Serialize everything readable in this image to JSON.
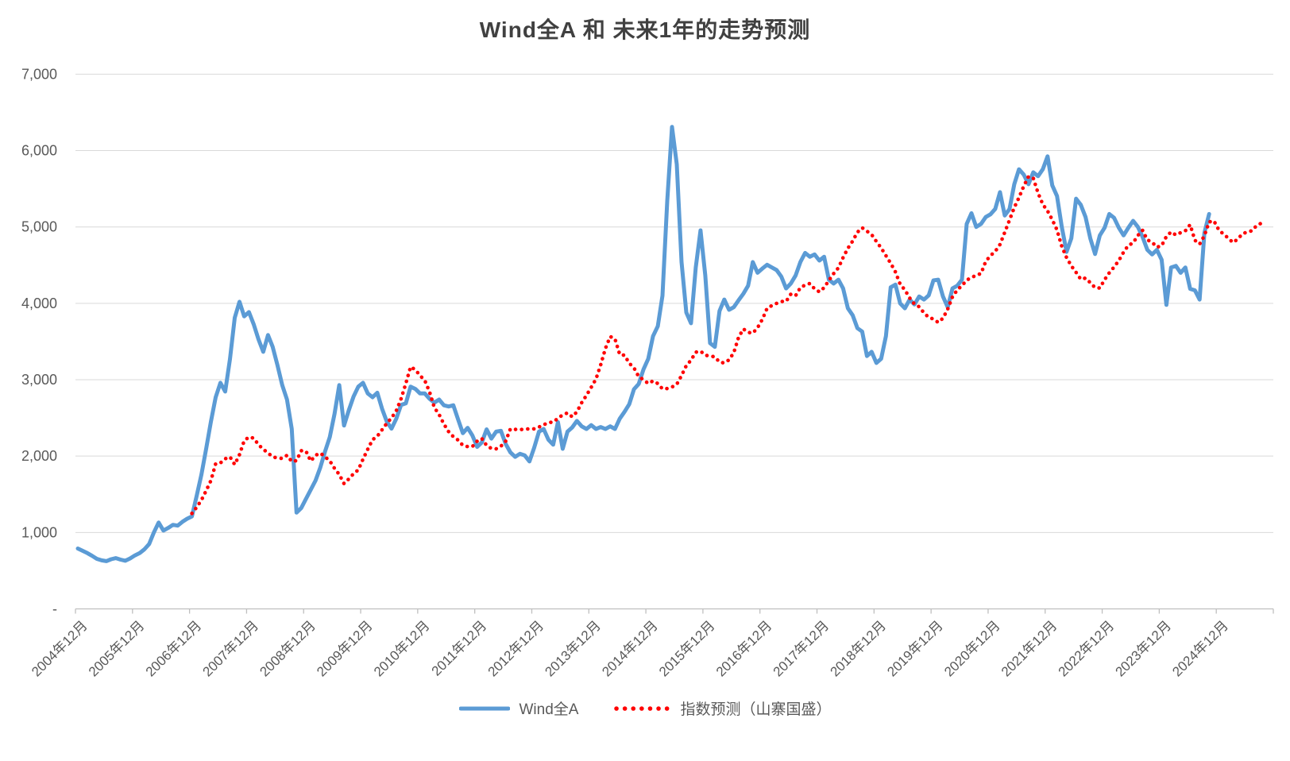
{
  "title": "Wind全A 和 未来1年的走势预测",
  "legend": {
    "items": [
      {
        "label": "Wind全A",
        "color": "#5B9BD5",
        "style": "solid"
      },
      {
        "label": "指数预测（山寨国盛）",
        "color": "#FF0000",
        "style": "dotted"
      }
    ]
  },
  "colors": {
    "series_actual": "#5B9BD5",
    "series_forecast": "#FF0000",
    "gridline": "#D9D9D9",
    "axis_line": "#BFBFBF",
    "axis_text": "#595959",
    "title_text": "#404040"
  },
  "chart_data": {
    "type": "line",
    "title": "Wind全A 和 未来1年的走势预测",
    "x_unit": "month",
    "x_start_label": "2004年12月",
    "grid": true,
    "legend_position": "bottom",
    "ylim": [
      0,
      7000
    ],
    "y_step": 1000,
    "y_tick_labels": [
      "7,000",
      "6,000",
      "5,000",
      "4,000",
      "3,000",
      "2,000",
      "1,000",
      "-"
    ],
    "x_tick_labels": [
      "2004年12月",
      "2005年12月",
      "2006年12月",
      "2007年12月",
      "2008年12月",
      "2009年12月",
      "2010年12月",
      "2011年12月",
      "2012年12月",
      "2013年12月",
      "2014年12月",
      "2015年12月",
      "2016年12月",
      "2017年12月",
      "2018年12月",
      "2019年12月",
      "2020年12月",
      "2021年12月",
      "2022年12月",
      "2023年12月",
      "2024年12月"
    ],
    "months_total": 252,
    "series": [
      {
        "name": "Wind全A",
        "color": "#5B9BD5",
        "style": "solid",
        "start_month_index": 0,
        "values": [
          790,
          760,
          730,
          695,
          655,
          635,
          625,
          650,
          665,
          645,
          630,
          660,
          700,
          730,
          780,
          850,
          1000,
          1130,
          1025,
          1060,
          1100,
          1090,
          1140,
          1180,
          1210,
          1480,
          1760,
          2100,
          2450,
          2770,
          2960,
          2845,
          3270,
          3810,
          4020,
          3830,
          3885,
          3725,
          3530,
          3365,
          3585,
          3430,
          3190,
          2930,
          2740,
          2355,
          1260,
          1320,
          1440,
          1560,
          1680,
          1850,
          2060,
          2250,
          2550,
          2930,
          2400,
          2600,
          2780,
          2910,
          2960,
          2820,
          2770,
          2830,
          2620,
          2450,
          2360,
          2490,
          2670,
          2690,
          2910,
          2880,
          2820,
          2820,
          2750,
          2700,
          2740,
          2665,
          2650,
          2665,
          2480,
          2300,
          2370,
          2270,
          2120,
          2180,
          2350,
          2230,
          2320,
          2330,
          2160,
          2050,
          1990,
          2030,
          2010,
          1930,
          2110,
          2320,
          2355,
          2215,
          2150,
          2445,
          2095,
          2320,
          2375,
          2460,
          2390,
          2355,
          2405,
          2355,
          2380,
          2355,
          2390,
          2355,
          2490,
          2580,
          2680,
          2875,
          2945,
          3135,
          3275,
          3570,
          3700,
          4100,
          5340,
          6310,
          5820,
          4540,
          3880,
          3740,
          4470,
          4955,
          4365,
          3480,
          3430,
          3900,
          4050,
          3915,
          3950,
          4040,
          4125,
          4230,
          4540,
          4400,
          4455,
          4505,
          4470,
          4435,
          4350,
          4195,
          4260,
          4365,
          4540,
          4660,
          4610,
          4640,
          4560,
          4610,
          4310,
          4260,
          4310,
          4195,
          3935,
          3845,
          3675,
          3630,
          3310,
          3365,
          3220,
          3275,
          3570,
          4210,
          4245,
          4000,
          3935,
          4050,
          3985,
          4090,
          4050,
          4105,
          4300,
          4310,
          4090,
          3950,
          4195,
          4230,
          4310,
          5040,
          5180,
          5000,
          5040,
          5130,
          5165,
          5235,
          5455,
          5150,
          5235,
          5560,
          5755,
          5685,
          5560,
          5715,
          5665,
          5755,
          5925,
          5545,
          5405,
          5000,
          4675,
          4850,
          5370,
          5290,
          5130,
          4850,
          4645,
          4890,
          4990,
          5170,
          5120,
          4990,
          4890,
          4990,
          5080,
          5000,
          4870,
          4700,
          4640,
          4700,
          4570,
          3980,
          4470,
          4490,
          4400,
          4470,
          4190,
          4170,
          4050,
          4920,
          5170
        ]
      },
      {
        "name": "指数预测（山寨国盛）",
        "color": "#FF0000",
        "style": "dotted",
        "start_month_index": 24,
        "values": [
          1250,
          1330,
          1425,
          1550,
          1680,
          1900,
          1910,
          1965,
          1990,
          1890,
          2020,
          2200,
          2250,
          2235,
          2150,
          2090,
          2040,
          1990,
          1975,
          1970,
          2010,
          1930,
          1940,
          2070,
          2065,
          1935,
          2010,
          2040,
          1990,
          1937,
          1840,
          1760,
          1640,
          1700,
          1770,
          1820,
          1960,
          2090,
          2215,
          2260,
          2345,
          2430,
          2500,
          2595,
          2750,
          2950,
          3170,
          3130,
          3055,
          2990,
          2840,
          2635,
          2545,
          2420,
          2320,
          2255,
          2210,
          2140,
          2125,
          2125,
          2195,
          2230,
          2140,
          2100,
          2095,
          2130,
          2195,
          2355,
          2350,
          2345,
          2355,
          2355,
          2357,
          2380,
          2410,
          2440,
          2445,
          2495,
          2540,
          2565,
          2515,
          2580,
          2700,
          2795,
          2900,
          3010,
          3195,
          3410,
          3565,
          3535,
          3330,
          3320,
          3215,
          3155,
          3040,
          3000,
          2950,
          2985,
          2950,
          2880,
          2885,
          2905,
          2940,
          3055,
          3185,
          3255,
          3360,
          3375,
          3320,
          3310,
          3300,
          3230,
          3220,
          3260,
          3355,
          3555,
          3665,
          3620,
          3610,
          3680,
          3790,
          3935,
          3970,
          4000,
          4025,
          4025,
          4120,
          4100,
          4205,
          4240,
          4260,
          4190,
          4150,
          4205,
          4300,
          4390,
          4465,
          4600,
          4720,
          4815,
          4930,
          4990,
          4945,
          4900,
          4810,
          4725,
          4625,
          4525,
          4410,
          4250,
          4175,
          4070,
          3990,
          3955,
          3875,
          3815,
          3795,
          3750,
          3805,
          3925,
          4085,
          4175,
          4230,
          4305,
          4335,
          4370,
          4390,
          4550,
          4625,
          4680,
          4770,
          4930,
          5090,
          5255,
          5385,
          5535,
          5660,
          5640,
          5445,
          5295,
          5210,
          5095,
          4960,
          4745,
          4600,
          4490,
          4405,
          4315,
          4330,
          4270,
          4205,
          4200,
          4310,
          4400,
          4475,
          4560,
          4670,
          4760,
          4790,
          4890,
          4955,
          4830,
          4800,
          4735,
          4755,
          4875,
          4935,
          4895,
          4925,
          4950,
          5030,
          4825,
          4775,
          4885,
          5065,
          5080,
          4965,
          4905,
          4855,
          4795,
          4840,
          4910,
          4935,
          4950,
          5020,
          5050,
          5050
        ]
      }
    ]
  }
}
